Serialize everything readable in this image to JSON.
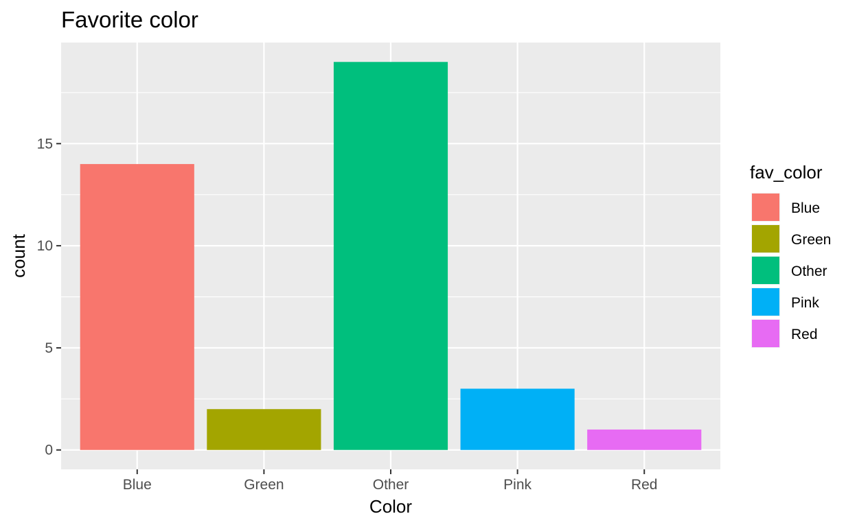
{
  "chart_data": {
    "type": "bar",
    "title": "Favorite color",
    "xlabel": "Color",
    "ylabel": "count",
    "categories": [
      "Blue",
      "Green",
      "Other",
      "Pink",
      "Red"
    ],
    "values": [
      14,
      2,
      19,
      3,
      1
    ],
    "colors": [
      "#F8766D",
      "#A3A500",
      "#00BF7D",
      "#00B0F6",
      "#E76BF3"
    ],
    "yticks": [
      0,
      5,
      10,
      15
    ],
    "ylim": [
      -0.95,
      19.95
    ],
    "grid": true,
    "panel_background": "#EBEBEB",
    "legend": {
      "title": "fav_color",
      "placement": "right",
      "items": [
        "Blue",
        "Green",
        "Other",
        "Pink",
        "Red"
      ]
    }
  }
}
